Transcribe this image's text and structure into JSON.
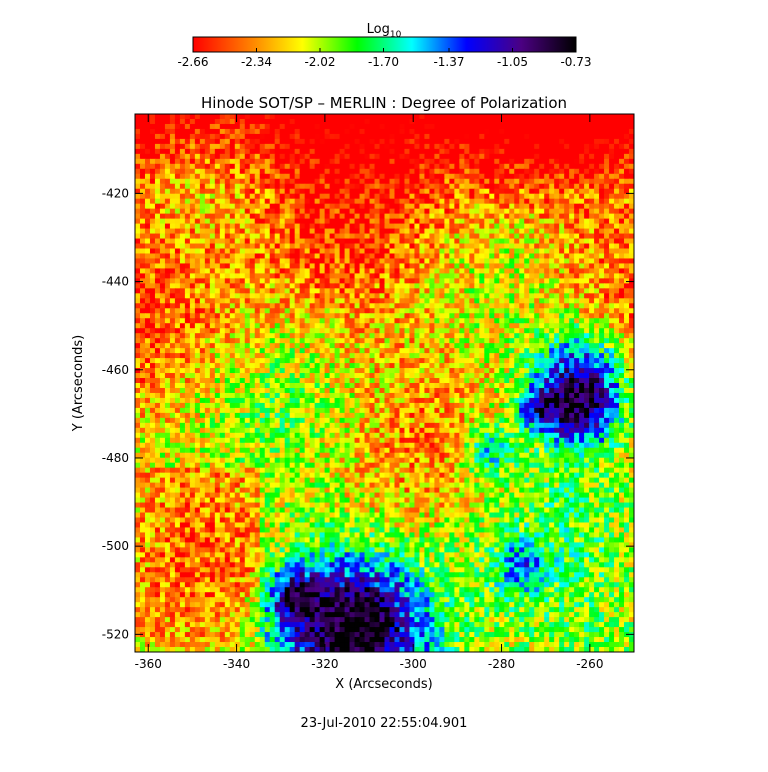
{
  "chart_data": {
    "type": "heatmap",
    "title": "Hinode SOT/SP – MERLIN : Degree of Polarization",
    "xlabel": "X (Arcseconds)",
    "ylabel": "Y (Arcseconds)",
    "xlim": [
      -363,
      -250
    ],
    "ylim": [
      -524,
      -402
    ],
    "xticks": [
      -360,
      -340,
      -320,
      -300,
      -280,
      -260
    ],
    "yticks": [
      -420,
      -440,
      -460,
      -480,
      -500,
      -520
    ],
    "colorbar": {
      "label_base": "Log",
      "label_sub": "10",
      "range": [
        -2.66,
        -0.73
      ],
      "ticks": [
        "-2.66",
        "-2.34",
        "-2.02",
        "-1.70",
        "-1.37",
        "-1.05",
        "-0.73"
      ],
      "colormap": [
        "#ff0000",
        "#ff7a00",
        "#ffff00",
        "#00ff00",
        "#00ffff",
        "#0000ff",
        "#4b0082",
        "#000000"
      ]
    },
    "timestamp": "23-Jul-2010 22:55:04.901"
  }
}
